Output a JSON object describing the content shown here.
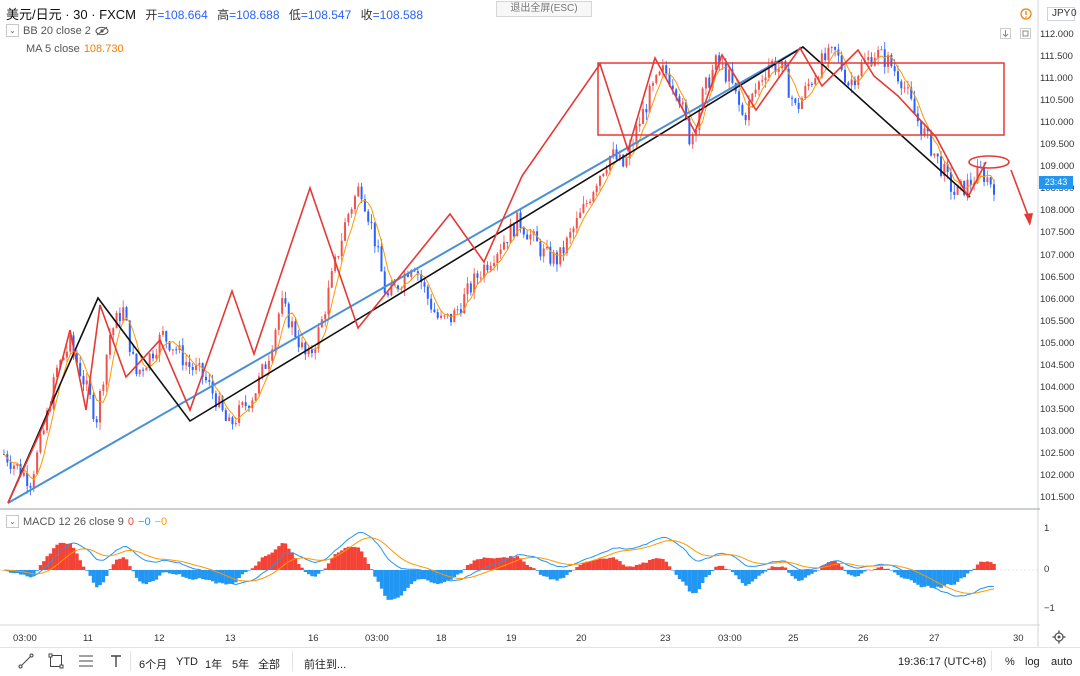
{
  "header": {
    "symbol": "美元/日元 · 30 · FXCM",
    "open_label": "开",
    "open_value": "=108.664",
    "high_label": "高",
    "high_value": "=108.688",
    "low_label": "低",
    "low_value": "=108.547",
    "close_label": "收",
    "close_value": "=108.588"
  },
  "exit_fullscreen": "退出全屏(ESC)",
  "indicators": {
    "bb": "BB 20 close 2",
    "ma_label": "MA 5 close",
    "ma_value": "108.730",
    "macd_label": "MACD 12 26 close 9",
    "macd_v1": "0",
    "macd_v2": "−0",
    "macd_v3": "−0"
  },
  "right_axis": {
    "currency": "JPY",
    "currency_suffix": "0",
    "price_ticks": [
      "112.000",
      "111.500",
      "111.000",
      "110.500",
      "110.000",
      "109.500",
      "109.000",
      "108.500",
      "108.000",
      "107.500",
      "107.000",
      "106.500",
      "106.000",
      "105.500",
      "105.000",
      "104.500",
      "104.000",
      "103.500",
      "103.000",
      "102.500",
      "102.000",
      "101.500"
    ],
    "current_price_tag": "23:43",
    "macd_ticks": [
      "1",
      "0",
      "−1"
    ]
  },
  "time_axis": [
    "03:00",
    "11",
    "12",
    "13",
    "16",
    "03:00",
    "18",
    "19",
    "20",
    "23",
    "03:00",
    "25",
    "26",
    "27",
    "30"
  ],
  "toolbar": {
    "periods": [
      "6个月",
      "YTD",
      "1年",
      "5年",
      "全部"
    ],
    "goto": "前往到...",
    "clock": "19:36:17 (UTC+8)",
    "percent": "%",
    "log": "log",
    "auto": "auto"
  },
  "colors": {
    "up": "#ef5350",
    "down": "#2962ff",
    "red_line": "#e53935",
    "trend_blue": "#4a90d9",
    "black_line": "#111111",
    "macd_pos": "#f44336",
    "macd_neg": "#2196f3"
  },
  "chart_data": {
    "type": "line",
    "title": "",
    "ylim": [
      101.2,
      112.2
    ],
    "ylabel": "",
    "x_labels": [
      "03:00",
      "11",
      "12",
      "13",
      "16",
      "03:00",
      "18",
      "19",
      "20",
      "23",
      "03:00",
      "25",
      "26",
      "27",
      "30"
    ],
    "series": [
      {
        "values": [
          102.5,
          102.2,
          101.9,
          103.0,
          104.4,
          105.0,
          104.2,
          103.3,
          105.2,
          105.8,
          104.3,
          104.7,
          105.2,
          104.9,
          104.5,
          104.3,
          103.8,
          103.1,
          103.5,
          103.9,
          104.7,
          105.9,
          105.3,
          104.6,
          105.4,
          106.7,
          107.9,
          108.6,
          107.5,
          106.0,
          106.4,
          106.9,
          106.1,
          105.5,
          105.6,
          106.1,
          106.6,
          107.0,
          107.4,
          107.8,
          107.4,
          107.0,
          106.9,
          107.5,
          108.1,
          108.8,
          109.3,
          109.0,
          109.9,
          110.7,
          111.2,
          110.8,
          109.6,
          110.7,
          111.4,
          111.0,
          110.1,
          110.8,
          111.4,
          111.2,
          110.3,
          110.9,
          111.4,
          111.6,
          110.9,
          111.3,
          111.6,
          111.4,
          111.0,
          110.2,
          109.6,
          109.0,
          108.4,
          108.6,
          108.9,
          108.6
        ]
      }
    ]
  }
}
